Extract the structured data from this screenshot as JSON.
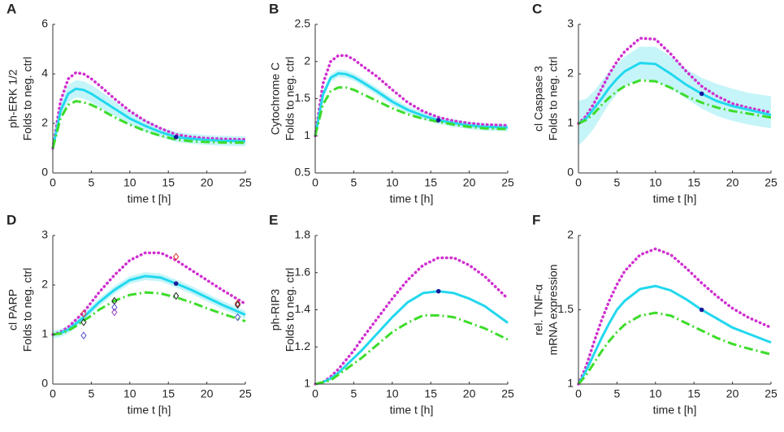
{
  "chart_data": [
    {
      "type": "line",
      "panel": "A",
      "ylabel": [
        "ph-ERK 1/2",
        "Folds to neg. ctrl"
      ],
      "xlabel": "time t [h]",
      "xlim": [
        0,
        25
      ],
      "xticks": [
        0,
        5,
        10,
        15,
        20,
        25
      ],
      "ylim": [
        0,
        6
      ],
      "yticks": [
        0,
        2,
        4,
        6
      ],
      "x": [
        0,
        1,
        2,
        3,
        4,
        5,
        6,
        8,
        10,
        12,
        14,
        16,
        18,
        20,
        22,
        25
      ],
      "band": {
        "color": "#b8f3f8",
        "lower": [
          0.9,
          2.2,
          2.85,
          3.05,
          3.0,
          2.85,
          2.65,
          2.3,
          1.95,
          1.65,
          1.45,
          1.25,
          1.18,
          1.13,
          1.1,
          1.08
        ],
        "upper": [
          1.1,
          2.8,
          3.55,
          3.75,
          3.7,
          3.55,
          3.35,
          2.9,
          2.45,
          2.15,
          1.85,
          1.65,
          1.58,
          1.53,
          1.5,
          1.48
        ]
      },
      "series": [
        {
          "color": "#d02fd0",
          "style": "dotted",
          "values": [
            1,
            2.9,
            3.8,
            4.05,
            4.0,
            3.8,
            3.55,
            3.0,
            2.5,
            2.1,
            1.8,
            1.55,
            1.45,
            1.4,
            1.37,
            1.35
          ]
        },
        {
          "color": "#22d8ee",
          "style": "solid",
          "values": [
            1,
            2.5,
            3.2,
            3.4,
            3.35,
            3.2,
            3.0,
            2.6,
            2.2,
            1.9,
            1.65,
            1.45,
            1.38,
            1.33,
            1.3,
            1.28
          ]
        },
        {
          "color": "#3ddc2a",
          "style": "dashdot",
          "values": [
            1,
            2.2,
            2.75,
            2.9,
            2.85,
            2.75,
            2.6,
            2.25,
            1.95,
            1.7,
            1.5,
            1.35,
            1.28,
            1.25,
            1.23,
            1.22
          ]
        }
      ],
      "points": [
        {
          "x": 16,
          "y": 1.45,
          "color": "#1a1a9a",
          "shape": "circle"
        }
      ]
    },
    {
      "type": "line",
      "panel": "B",
      "ylabel": [
        "Cytochrome C",
        "Folds to neg. ctrl"
      ],
      "xlabel": "time t [h]",
      "xlim": [
        0,
        25
      ],
      "xticks": [
        0,
        5,
        10,
        15,
        20,
        25
      ],
      "ylim": [
        0.5,
        2.5
      ],
      "yticks": [
        0.5,
        1,
        1.5,
        2,
        2.5
      ],
      "x": [
        0,
        1,
        2,
        3,
        4,
        5,
        6,
        8,
        10,
        12,
        14,
        16,
        18,
        20,
        22,
        25
      ],
      "band": {
        "color": "#b8f3f8",
        "lower": [
          0.98,
          1.5,
          1.73,
          1.79,
          1.78,
          1.74,
          1.68,
          1.55,
          1.41,
          1.3,
          1.22,
          1.16,
          1.12,
          1.09,
          1.07,
          1.06
        ],
        "upper": [
          1.02,
          1.6,
          1.83,
          1.89,
          1.88,
          1.84,
          1.78,
          1.65,
          1.51,
          1.4,
          1.32,
          1.26,
          1.22,
          1.19,
          1.17,
          1.16
        ]
      },
      "series": [
        {
          "color": "#d02fd0",
          "style": "dotted",
          "values": [
            1,
            1.7,
            2.0,
            2.08,
            2.08,
            2.03,
            1.95,
            1.8,
            1.62,
            1.45,
            1.33,
            1.25,
            1.2,
            1.17,
            1.15,
            1.14
          ]
        },
        {
          "color": "#22d8ee",
          "style": "solid",
          "values": [
            1,
            1.55,
            1.78,
            1.84,
            1.83,
            1.79,
            1.73,
            1.6,
            1.46,
            1.35,
            1.27,
            1.21,
            1.17,
            1.14,
            1.12,
            1.11
          ]
        },
        {
          "color": "#3ddc2a",
          "style": "dashdot",
          "values": [
            1,
            1.42,
            1.6,
            1.65,
            1.65,
            1.62,
            1.57,
            1.47,
            1.37,
            1.29,
            1.23,
            1.19,
            1.15,
            1.12,
            1.1,
            1.09
          ]
        }
      ],
      "points": [
        {
          "x": 16,
          "y": 1.21,
          "color": "#1a1a9a",
          "shape": "circle"
        }
      ]
    },
    {
      "type": "line",
      "panel": "C",
      "ylabel": [
        "cl Caspase 3",
        "Folds to neg. ctrl"
      ],
      "xlabel": "time t [h]",
      "xlim": [
        0,
        25
      ],
      "xticks": [
        0,
        5,
        10,
        15,
        20,
        25
      ],
      "ylim": [
        0,
        3
      ],
      "yticks": [
        0,
        1,
        2,
        3
      ],
      "x": [
        0,
        1,
        2,
        3,
        4,
        5,
        6,
        8,
        10,
        12,
        14,
        16,
        18,
        20,
        22,
        25
      ],
      "band": {
        "color": "#b8f3f8",
        "lower": [
          0.55,
          0.7,
          0.9,
          1.15,
          1.4,
          1.6,
          1.75,
          1.9,
          1.85,
          1.7,
          1.5,
          1.3,
          1.15,
          1.05,
          0.98,
          0.9
        ],
        "upper": [
          1.45,
          1.5,
          1.65,
          1.85,
          2.05,
          2.2,
          2.35,
          2.55,
          2.55,
          2.35,
          2.1,
          1.92,
          1.8,
          1.7,
          1.62,
          1.55
        ]
      },
      "series": [
        {
          "color": "#d02fd0",
          "style": "dotted",
          "values": [
            1,
            1.15,
            1.4,
            1.7,
            2.0,
            2.25,
            2.45,
            2.72,
            2.7,
            2.4,
            2.05,
            1.75,
            1.55,
            1.4,
            1.32,
            1.22
          ]
        },
        {
          "color": "#22d8ee",
          "style": "solid",
          "values": [
            1,
            1.1,
            1.3,
            1.5,
            1.72,
            1.9,
            2.05,
            2.22,
            2.2,
            2.0,
            1.78,
            1.6,
            1.45,
            1.35,
            1.28,
            1.17
          ]
        },
        {
          "color": "#3ddc2a",
          "style": "dashdot",
          "values": [
            1,
            1.07,
            1.2,
            1.37,
            1.52,
            1.65,
            1.75,
            1.87,
            1.85,
            1.72,
            1.55,
            1.42,
            1.32,
            1.25,
            1.2,
            1.12
          ]
        }
      ],
      "points": [
        {
          "x": 16,
          "y": 1.6,
          "color": "#1a1a9a",
          "shape": "circle"
        }
      ]
    },
    {
      "type": "line",
      "panel": "D",
      "ylabel": [
        "cl PARP",
        "Folds to neg. ctrl"
      ],
      "xlabel": "time t [h]",
      "xlim": [
        0,
        25
      ],
      "xticks": [
        0,
        5,
        10,
        15,
        20,
        25
      ],
      "ylim": [
        0,
        3
      ],
      "yticks": [
        0,
        1,
        2,
        3
      ],
      "x": [
        0,
        1,
        2,
        3,
        4,
        5,
        6,
        8,
        10,
        12,
        14,
        16,
        18,
        20,
        22,
        25
      ],
      "band": {
        "color": "#b8f3f8",
        "lower": [
          0.92,
          0.95,
          1.02,
          1.14,
          1.27,
          1.42,
          1.57,
          1.82,
          2.02,
          2.1,
          2.07,
          1.95,
          1.82,
          1.67,
          1.52,
          1.32
        ],
        "upper": [
          1.08,
          1.11,
          1.18,
          1.3,
          1.43,
          1.58,
          1.73,
          1.98,
          2.18,
          2.26,
          2.23,
          2.11,
          1.98,
          1.83,
          1.68,
          1.48
        ]
      },
      "series": [
        {
          "color": "#d02fd0",
          "style": "dotted",
          "values": [
            1,
            1.05,
            1.15,
            1.3,
            1.45,
            1.65,
            1.85,
            2.2,
            2.5,
            2.65,
            2.65,
            2.5,
            2.3,
            2.1,
            1.9,
            1.62
          ]
        },
        {
          "color": "#22d8ee",
          "style": "solid",
          "values": [
            1,
            1.03,
            1.1,
            1.22,
            1.35,
            1.5,
            1.65,
            1.9,
            2.1,
            2.18,
            2.15,
            2.03,
            1.9,
            1.75,
            1.6,
            1.4
          ]
        },
        {
          "color": "#3ddc2a",
          "style": "dashdot",
          "values": [
            1,
            1.02,
            1.08,
            1.17,
            1.28,
            1.38,
            1.5,
            1.68,
            1.8,
            1.85,
            1.83,
            1.75,
            1.65,
            1.53,
            1.42,
            1.27
          ]
        }
      ],
      "points": [
        {
          "x": 16,
          "y": 2.03,
          "color": "#1a1a9a",
          "shape": "circle"
        },
        {
          "x": 4,
          "y": 1.42,
          "color": "#e03030",
          "shape": "diamond"
        },
        {
          "x": 4,
          "y": 1.25,
          "color": "#202020",
          "shape": "diamond"
        },
        {
          "x": 4,
          "y": 0.98,
          "color": "#5050d0",
          "shape": "diamond"
        },
        {
          "x": 8,
          "y": 1.68,
          "color": "#202020",
          "shape": "diamond"
        },
        {
          "x": 8,
          "y": 1.55,
          "color": "#5050d0",
          "shape": "diamond"
        },
        {
          "x": 8,
          "y": 1.45,
          "color": "#a040c0",
          "shape": "diamond"
        },
        {
          "x": 16,
          "y": 2.57,
          "color": "#e03030",
          "shape": "diamond"
        },
        {
          "x": 16,
          "y": 1.78,
          "color": "#202020",
          "shape": "diamond"
        },
        {
          "x": 24,
          "y": 1.63,
          "color": "#e03030",
          "shape": "diamond"
        },
        {
          "x": 24,
          "y": 1.6,
          "color": "#202020",
          "shape": "diamond"
        },
        {
          "x": 24,
          "y": 1.35,
          "color": "#5050d0",
          "shape": "diamond"
        }
      ]
    },
    {
      "type": "line",
      "panel": "E",
      "ylabel": [
        "ph-RIP3",
        "Folds to neg. ctrl"
      ],
      "xlabel": "time t [h]",
      "xlim": [
        0,
        25
      ],
      "xticks": [
        0,
        5,
        10,
        15,
        20,
        25
      ],
      "ylim": [
        1,
        1.8
      ],
      "yticks": [
        1,
        1.2,
        1.4,
        1.6,
        1.8
      ],
      "x": [
        0,
        1,
        2,
        3,
        4,
        5,
        6,
        8,
        10,
        12,
        14,
        16,
        18,
        20,
        22,
        25
      ],
      "series": [
        {
          "color": "#d02fd0",
          "style": "dotted",
          "values": [
            1,
            1.01,
            1.04,
            1.08,
            1.13,
            1.18,
            1.24,
            1.35,
            1.46,
            1.56,
            1.64,
            1.68,
            1.68,
            1.64,
            1.58,
            1.46
          ]
        },
        {
          "color": "#22d8ee",
          "style": "solid",
          "values": [
            1,
            1.01,
            1.03,
            1.06,
            1.1,
            1.14,
            1.18,
            1.27,
            1.36,
            1.44,
            1.49,
            1.5,
            1.49,
            1.46,
            1.42,
            1.33
          ]
        },
        {
          "color": "#3ddc2a",
          "style": "dashdot",
          "values": [
            1,
            1.01,
            1.02,
            1.05,
            1.08,
            1.11,
            1.14,
            1.21,
            1.28,
            1.33,
            1.37,
            1.37,
            1.36,
            1.33,
            1.3,
            1.24
          ]
        }
      ],
      "points": [
        {
          "x": 16,
          "y": 1.5,
          "color": "#1a1a9a",
          "shape": "circle"
        }
      ]
    },
    {
      "type": "line",
      "panel": "F",
      "ylabel": [
        "rel. TNF-α",
        "mRNA expression"
      ],
      "xlabel": "time t [h]",
      "xlim": [
        0,
        25
      ],
      "xticks": [
        0,
        5,
        10,
        15,
        20,
        25
      ],
      "ylim": [
        1,
        2
      ],
      "yticks": [
        1,
        1.5,
        2
      ],
      "x": [
        0,
        1,
        2,
        3,
        4,
        5,
        6,
        8,
        10,
        12,
        14,
        16,
        18,
        20,
        22,
        25
      ],
      "series": [
        {
          "color": "#d02fd0",
          "style": "dotted",
          "values": [
            1,
            1.12,
            1.28,
            1.43,
            1.56,
            1.67,
            1.76,
            1.87,
            1.91,
            1.87,
            1.78,
            1.68,
            1.59,
            1.51,
            1.45,
            1.38
          ]
        },
        {
          "color": "#22d8ee",
          "style": "solid",
          "values": [
            1,
            1.09,
            1.2,
            1.31,
            1.41,
            1.5,
            1.56,
            1.64,
            1.66,
            1.63,
            1.57,
            1.5,
            1.44,
            1.38,
            1.34,
            1.28
          ]
        },
        {
          "color": "#3ddc2a",
          "style": "dashdot",
          "values": [
            1,
            1.06,
            1.14,
            1.22,
            1.29,
            1.35,
            1.4,
            1.46,
            1.48,
            1.46,
            1.41,
            1.36,
            1.31,
            1.27,
            1.24,
            1.2
          ]
        }
      ],
      "points": [
        {
          "x": 16,
          "y": 1.5,
          "color": "#1a1a9a",
          "shape": "circle"
        }
      ]
    }
  ]
}
